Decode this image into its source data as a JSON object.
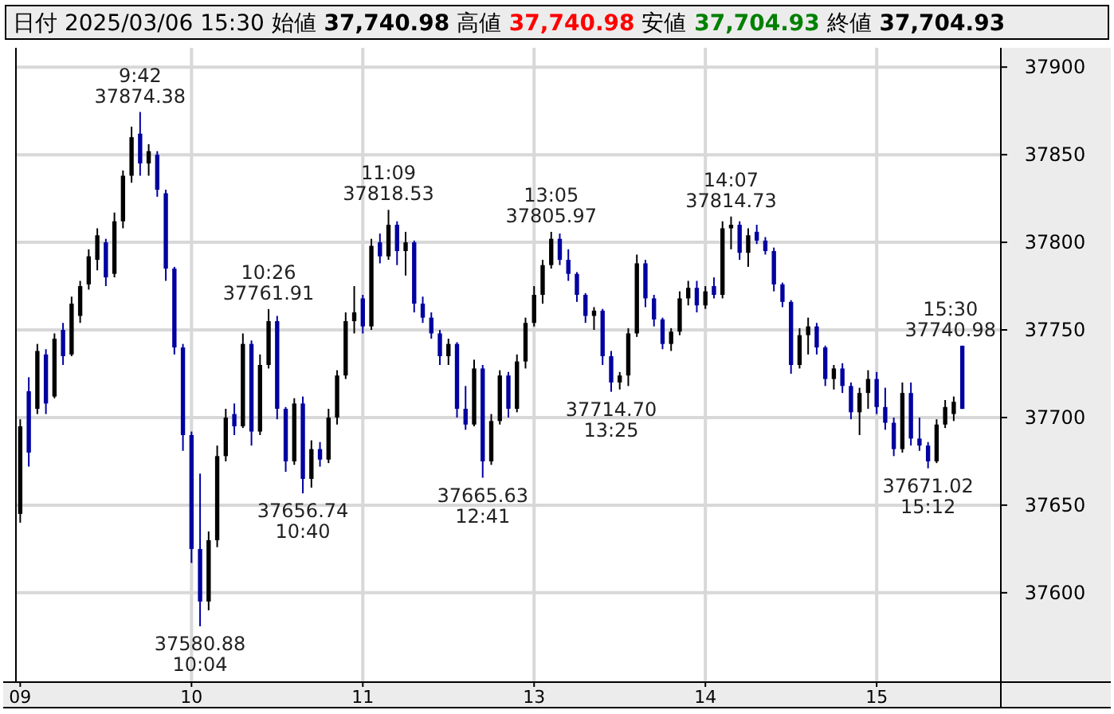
{
  "chart_data": {
    "type": "candlestick",
    "title": "日付 2025/03/06 15:30 始値 37,740.98 高値 37,740.98 安値 37,704.93 終値 37,704.93",
    "categories": [
      "09",
      null,
      null,
      null,
      null,
      null,
      null,
      null,
      null,
      null,
      null,
      null,
      null,
      null,
      null,
      null,
      null,
      null,
      null,
      null,
      "10",
      null,
      null,
      null,
      null,
      null,
      null,
      null,
      null,
      null,
      null,
      null,
      null,
      null,
      null,
      null,
      null,
      null,
      null,
      null,
      "11",
      null,
      null,
      null,
      null,
      null,
      null,
      null,
      null,
      null,
      null,
      null,
      null,
      null,
      null,
      null,
      null,
      null,
      null,
      null,
      "13",
      null,
      null,
      null,
      null,
      null,
      null,
      null,
      null,
      null,
      null,
      null,
      null,
      null,
      null,
      null,
      null,
      null,
      null,
      null,
      "14",
      null,
      null,
      null,
      null,
      null,
      null,
      null,
      null,
      null,
      null,
      null,
      null,
      null,
      null,
      null,
      null,
      null,
      null,
      null,
      "15",
      null,
      null,
      null,
      null,
      null,
      null,
      null,
      null,
      null,
      null,
      null,
      null,
      null,
      null
    ],
    "ohlc": [
      [
        37645,
        37699,
        37640,
        37695
      ],
      [
        37715,
        37723,
        37672,
        37680
      ],
      [
        37705,
        37742,
        37702,
        37738
      ],
      [
        37736,
        37739,
        37702,
        37708
      ],
      [
        37712,
        37748,
        37711,
        37745
      ],
      [
        37750,
        37754,
        37730,
        37735
      ],
      [
        37736,
        37769,
        37735,
        37765
      ],
      [
        37758,
        37778,
        37754,
        37775
      ],
      [
        37776,
        37796,
        37773,
        37792
      ],
      [
        37790,
        37808,
        37784,
        37804
      ],
      [
        37800,
        37802,
        37775,
        37780
      ],
      [
        37782,
        37817,
        37780,
        37812
      ],
      [
        37812,
        37841,
        37808,
        37838
      ],
      [
        37838,
        37866,
        37834,
        37860
      ],
      [
        37862,
        37874.38,
        37838,
        37845
      ],
      [
        37845,
        37856,
        37838,
        37852
      ],
      [
        37850,
        37852,
        37826,
        37830
      ],
      [
        37828,
        37830,
        37778,
        37785
      ],
      [
        37785,
        37786,
        37736,
        37740
      ],
      [
        37740,
        37742,
        37681,
        37690
      ],
      [
        37690,
        37692,
        37617,
        37625
      ],
      [
        37625,
        37668,
        37580.88,
        37595
      ],
      [
        37595,
        37635,
        37590,
        37630
      ],
      [
        37630,
        37684,
        37626,
        37678
      ],
      [
        37678,
        37705,
        37675,
        37700
      ],
      [
        37702,
        37708,
        37690,
        37695
      ],
      [
        37695,
        37748,
        37694,
        37742
      ],
      [
        37742,
        37744,
        37684,
        37692
      ],
      [
        37692,
        37736,
        37690,
        37730
      ],
      [
        37730,
        37761.91,
        37728,
        37755
      ],
      [
        37755,
        37758,
        37699,
        37705
      ],
      [
        37705,
        37706,
        37669,
        37675
      ],
      [
        37675,
        37711,
        37673,
        37708
      ],
      [
        37708,
        37712,
        37656.74,
        37665
      ],
      [
        37665,
        37687,
        37660,
        37682
      ],
      [
        37682,
        37686,
        37672,
        37676
      ],
      [
        37676,
        37705,
        37674,
        37700
      ],
      [
        37700,
        37727,
        37696,
        37724
      ],
      [
        37724,
        37760,
        37722,
        37755
      ],
      [
        37755,
        37775,
        37748,
        37760
      ],
      [
        37768,
        37770,
        37748,
        37752
      ],
      [
        37752,
        37802,
        37750,
        37798
      ],
      [
        37800,
        37805,
        37788,
        37792
      ],
      [
        37792,
        37818.53,
        37790,
        37810
      ],
      [
        37810,
        37812,
        37787,
        37795
      ],
      [
        37795,
        37806,
        37781,
        37800
      ],
      [
        37800,
        37801,
        37760,
        37765
      ],
      [
        37765,
        37769,
        37754,
        37757
      ],
      [
        37757,
        37760,
        37745,
        37748
      ],
      [
        37748,
        37750,
        37730,
        37735
      ],
      [
        37735,
        37745,
        37730,
        37742
      ],
      [
        37742,
        37743,
        37700,
        37705
      ],
      [
        37705,
        37718,
        37693,
        37696
      ],
      [
        37696,
        37733,
        37695,
        37728
      ],
      [
        37728,
        37730,
        37665.63,
        37675
      ],
      [
        37675,
        37702,
        37673,
        37698
      ],
      [
        37698,
        37727,
        37696,
        37724
      ],
      [
        37724,
        37726,
        37700,
        37705
      ],
      [
        37705,
        37736,
        37703,
        37732
      ],
      [
        37732,
        37757,
        37728,
        37754
      ],
      [
        37754,
        37775,
        37752,
        37770
      ],
      [
        37770,
        37790,
        37765,
        37787
      ],
      [
        37787,
        37805.97,
        37785,
        37802
      ],
      [
        37802,
        37805,
        37787,
        37790
      ],
      [
        37790,
        37796,
        37778,
        37782
      ],
      [
        37782,
        37783,
        37766,
        37770
      ],
      [
        37770,
        37771,
        37754,
        37758
      ],
      [
        37758,
        37763,
        37750,
        37761
      ],
      [
        37761,
        37762,
        37730,
        37735
      ],
      [
        37735,
        37738,
        37714.7,
        37720
      ],
      [
        37720,
        37726,
        37716,
        37724
      ],
      [
        37724,
        37751,
        37718,
        37748
      ],
      [
        37748,
        37793,
        37746,
        37788
      ],
      [
        37788,
        37790,
        37763,
        37768
      ],
      [
        37768,
        37770,
        37752,
        37756
      ],
      [
        37756,
        37757,
        37739,
        37742
      ],
      [
        37742,
        37751,
        37738,
        37749
      ],
      [
        37749,
        37772,
        37747,
        37768
      ],
      [
        37768,
        37778,
        37764,
        37774
      ],
      [
        37774,
        37778,
        37760,
        37764
      ],
      [
        37764,
        37775,
        37762,
        37772
      ],
      [
        37775,
        37780,
        37768,
        37770
      ],
      [
        37770,
        37812,
        37768,
        37808
      ],
      [
        37808,
        37814.73,
        37796,
        37810
      ],
      [
        37810,
        37812,
        37790,
        37794
      ],
      [
        37794,
        37808,
        37786,
        37804
      ],
      [
        37806,
        37810,
        37799,
        37801
      ],
      [
        37801,
        37803,
        37793,
        37795
      ],
      [
        37795,
        37797,
        37772,
        37776
      ],
      [
        37776,
        37777,
        37763,
        37766
      ],
      [
        37766,
        37767,
        37725,
        37730
      ],
      [
        37730,
        37751,
        37728,
        37747
      ],
      [
        37747,
        37757,
        37736,
        37752
      ],
      [
        37752,
        37754,
        37736,
        37740
      ],
      [
        37740,
        37741,
        37718,
        37722
      ],
      [
        37722,
        37730,
        37716,
        37728
      ],
      [
        37728,
        37731,
        37714,
        37718
      ],
      [
        37718,
        37720,
        37699,
        37703
      ],
      [
        37703,
        37717,
        37690,
        37714
      ],
      [
        37714,
        37727,
        37705,
        37722
      ],
      [
        37722,
        37726,
        37702,
        37706
      ],
      [
        37706,
        37717,
        37693,
        37697
      ],
      [
        37697,
        37700,
        37678,
        37682
      ],
      [
        37682,
        37720,
        37680,
        37714
      ],
      [
        37714,
        37720,
        37684,
        37688
      ],
      [
        37688,
        37700,
        37681,
        37684
      ],
      [
        37684,
        37686,
        37671.02,
        37675
      ],
      [
        37675,
        37699,
        37674,
        37696
      ],
      [
        37696,
        37710,
        37694,
        37706
      ],
      [
        37702,
        37712,
        37698,
        37709
      ],
      [
        37740.98,
        37740.98,
        37704.93,
        37704.93
      ],
      null,
      null,
      null,
      null
    ],
    "colors": [
      "#000000",
      "#0000a0",
      "#000000",
      "#0000a0",
      "#000000",
      "#0000a0",
      "#000000",
      "#000000",
      "#000000",
      "#000000",
      "#0000a0",
      "#000000",
      "#000000",
      "#000000",
      "#0000a0",
      "#000000",
      "#0000a0",
      "#0000a0",
      "#0000a0",
      "#0000a0",
      "#0000a0",
      "#0000a0",
      "#000000",
      "#000000",
      "#000000",
      "#0000a0",
      "#000000",
      "#0000a0",
      "#000000",
      "#000000",
      "#0000a0",
      "#0000a0",
      "#000000",
      "#0000a0",
      "#000000",
      "#0000a0",
      "#000000",
      "#000000",
      "#000000",
      "#000000",
      "#0000a0",
      "#000000",
      "#0000a0",
      "#000000",
      "#0000a0",
      "#000000",
      "#0000a0",
      "#0000a0",
      "#0000a0",
      "#0000a0",
      "#000000",
      "#0000a0",
      "#0000a0",
      "#000000",
      "#0000a0",
      "#000000",
      "#000000",
      "#0000a0",
      "#000000",
      "#000000",
      "#000000",
      "#000000",
      "#000000",
      "#0000a0",
      "#0000a0",
      "#0000a0",
      "#0000a0",
      "#000000",
      "#0000a0",
      "#0000a0",
      "#000000",
      "#000000",
      "#000000",
      "#0000a0",
      "#0000a0",
      "#0000a0",
      "#000000",
      "#000000",
      "#000000",
      "#0000a0",
      "#000000",
      "#0000a0",
      "#000000",
      "#000000",
      "#0000a0",
      "#000000",
      "#0000a0",
      "#0000a0",
      "#0000a0",
      "#0000a0",
      "#0000a0",
      "#000000",
      "#000000",
      "#0000a0",
      "#0000a0",
      "#000000",
      "#0000a0",
      "#0000a0",
      "#000000",
      "#000000",
      "#0000a0",
      "#0000a0",
      "#0000a0",
      "#000000",
      "#0000a0",
      "#0000a0",
      "#0000a0",
      "#000000",
      "#000000",
      "#000000",
      "#0000a0",
      null,
      null,
      null,
      null
    ],
    "ylim": [
      37549,
      37911
    ],
    "yticks": [
      37600,
      37650,
      37700,
      37750,
      37800,
      37850,
      37900
    ],
    "grid": true,
    "annotations": [
      "9:42\n37874.38",
      "37580.88\n10:04",
      "10:26\n37761.91",
      "37656.74\n10:40",
      "11:09\n37818.53",
      "37665.63\n12:41",
      "13:05\n37805.97",
      "37714.70\n13:25",
      "14:07\n37814.73",
      "37671.02\n15:12",
      "15:30\n37740.98"
    ]
  }
}
